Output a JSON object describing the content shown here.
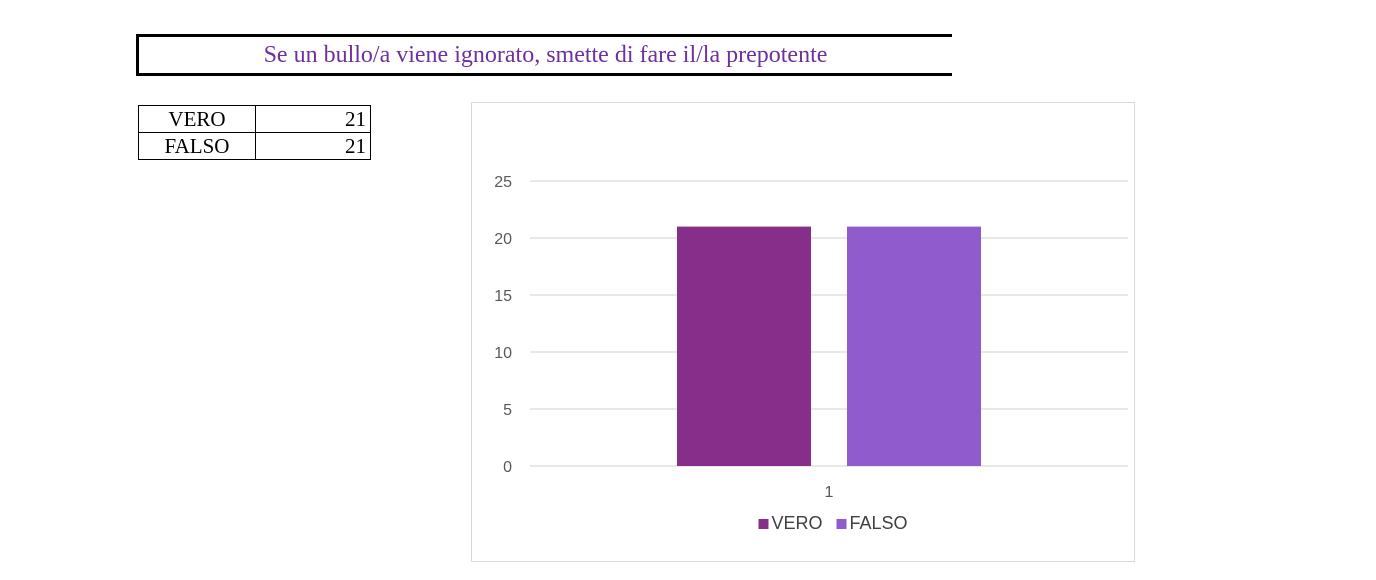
{
  "title": "Se un bullo/a viene ignorato, smette di fare il/la prepotente",
  "table": {
    "rows": [
      {
        "label": "VERO",
        "value": "21"
      },
      {
        "label": "FALSO",
        "value": "21"
      }
    ]
  },
  "chart_data": {
    "type": "bar",
    "categories": [
      "1"
    ],
    "series": [
      {
        "name": "VERO",
        "values": [
          21
        ],
        "color": "#862e89"
      },
      {
        "name": "FALSO",
        "values": [
          21
        ],
        "color": "#905ccd"
      }
    ],
    "ylim": [
      0,
      25
    ],
    "yticks": [
      "0",
      "5",
      "10",
      "15",
      "20",
      "25"
    ],
    "grid": true,
    "legend": "bottom",
    "title": "",
    "xlabel": "",
    "ylabel": ""
  }
}
